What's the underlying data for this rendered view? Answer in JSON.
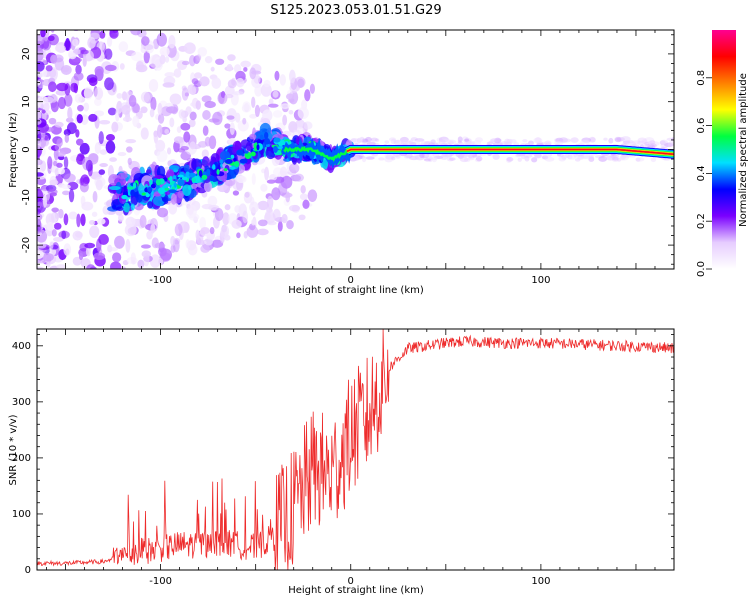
{
  "title": "S125.2023.053.01.51.G29",
  "chart_data": [
    {
      "type": "heatmap",
      "xlabel": "Height of straight line (km)",
      "ylabel": "Frequency (Hz)",
      "xlim": [
        -165,
        170
      ],
      "ylim": [
        -25,
        25
      ],
      "xticks": [
        -100,
        0,
        100
      ],
      "yticks": [
        -20,
        -10,
        0,
        10,
        20
      ],
      "colorbar": {
        "label": "Normalized spectral amplitude",
        "range": [
          0,
          1
        ],
        "ticks": [
          0.0,
          0.2,
          0.4,
          0.6,
          0.8
        ],
        "colormap": [
          "#ffffff",
          "#e6ccff",
          "#7a00ff",
          "#0000ff",
          "#00e0ff",
          "#00ff40",
          "#ffff00",
          "#ff8000",
          "#ff0000",
          "#ff0090"
        ]
      },
      "ridge": [
        {
          "x": -120,
          "freq": -9,
          "amp": 0.35
        },
        {
          "x": -105,
          "freq": -8,
          "amp": 0.35
        },
        {
          "x": -90,
          "freq": -7,
          "amp": 0.4
        },
        {
          "x": -75,
          "freq": -5,
          "amp": 0.4
        },
        {
          "x": -60,
          "freq": -2,
          "amp": 0.45
        },
        {
          "x": -45,
          "freq": 2,
          "amp": 0.5
        },
        {
          "x": -35,
          "freq": 0,
          "amp": 0.55
        },
        {
          "x": -20,
          "freq": 0,
          "amp": 0.6
        },
        {
          "x": -10,
          "freq": -2,
          "amp": 0.55
        },
        {
          "x": 0,
          "freq": 0,
          "amp": 0.95
        },
        {
          "x": 50,
          "freq": 0,
          "amp": 1.0
        },
        {
          "x": 100,
          "freq": 0,
          "amp": 1.0
        },
        {
          "x": 140,
          "freq": 0,
          "amp": 0.8
        },
        {
          "x": 170,
          "freq": -1,
          "amp": 0.7
        }
      ]
    },
    {
      "type": "line",
      "xlabel": "Height of straight line (km)",
      "ylabel": "SNR (10 * v/v)",
      "xlim": [
        -165,
        170
      ],
      "ylim": [
        0,
        430
      ],
      "xticks": [
        -100,
        0,
        100
      ],
      "yticks": [
        0,
        100,
        200,
        300,
        400
      ],
      "color": "#ee2b2b",
      "series": [
        {
          "x": [
            -165,
            -150,
            -130,
            -120,
            -110,
            -100,
            -90,
            -80,
            -70,
            -60,
            -50,
            -40,
            -30,
            -20,
            -10,
            0,
            10,
            20,
            30,
            40,
            50,
            60,
            80,
            100,
            120,
            140,
            160,
            170
          ],
          "values": [
            12,
            12,
            15,
            25,
            32,
            38,
            45,
            45,
            50,
            45,
            40,
            60,
            110,
            180,
            170,
            240,
            280,
            360,
            395,
            400,
            405,
            408,
            405,
            405,
            403,
            400,
            398,
            395
          ]
        }
      ]
    }
  ]
}
